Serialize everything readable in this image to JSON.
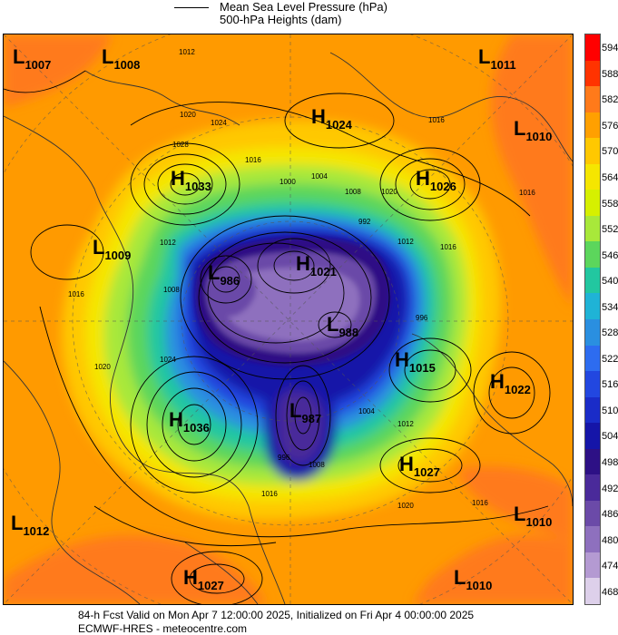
{
  "legend": {
    "line_label": "Mean Sea Level Pressure (hPa)",
    "fill_label": "500-hPa Heights (dam)"
  },
  "colorbar": {
    "levels": [
      "594",
      "588",
      "582",
      "576",
      "570",
      "564",
      "558",
      "552",
      "546",
      "540",
      "534",
      "528",
      "522",
      "516",
      "510",
      "504",
      "498",
      "492",
      "486",
      "480",
      "474",
      "468"
    ],
    "colors": [
      "#ff0000",
      "#ff3300",
      "#ff7a1a",
      "#ffa000",
      "#ffc800",
      "#f5e600",
      "#d6f000",
      "#a8e83a",
      "#5cd65c",
      "#22c7a0",
      "#1fb3d6",
      "#2a8fe0",
      "#2d6cf0",
      "#2247e0",
      "#1a2cc8",
      "#1515a8",
      "#2d1085",
      "#4a2a9a",
      "#6b4aa8",
      "#8e70be",
      "#b49ad2",
      "#ddd0ea"
    ]
  },
  "systems": [
    {
      "type": "L",
      "value": "1007"
    },
    {
      "type": "L",
      "value": "1008"
    },
    {
      "type": "L",
      "value": "1011"
    },
    {
      "type": "H",
      "value": "1024"
    },
    {
      "type": "L",
      "value": "1010"
    },
    {
      "type": "H",
      "value": "1033"
    },
    {
      "type": "H",
      "value": "1026"
    },
    {
      "type": "L",
      "value": "1009"
    },
    {
      "type": "L",
      "value": "986"
    },
    {
      "type": "H",
      "value": "1021"
    },
    {
      "type": "L",
      "value": "988"
    },
    {
      "type": "H",
      "value": "1015"
    },
    {
      "type": "H",
      "value": "1022"
    },
    {
      "type": "H",
      "value": "1036"
    },
    {
      "type": "L",
      "value": "987"
    },
    {
      "type": "H",
      "value": "1027"
    },
    {
      "type": "L",
      "value": "1012"
    },
    {
      "type": "L",
      "value": "1010"
    },
    {
      "type": "H",
      "value": "1027"
    },
    {
      "type": "L",
      "value": "1010"
    }
  ],
  "isobar_labels": [
    "1012",
    "1020",
    "1024",
    "1028",
    "1016",
    "1004",
    "1000",
    "992",
    "1008",
    "1020",
    "1016",
    "1012",
    "1012",
    "1016",
    "1016",
    "1024",
    "1020",
    "1008",
    "996",
    "1012",
    "1008",
    "1004",
    "996",
    "1016",
    "1020",
    "1016",
    "1016"
  ],
  "footer": {
    "line1": "84-h Fcst Valid on Mon Apr  7 12:00:00 2025, Initialized on Fri Apr  4 00:00:00 2025",
    "line2": "ECMWF-HRES  - meteocentre.com"
  }
}
